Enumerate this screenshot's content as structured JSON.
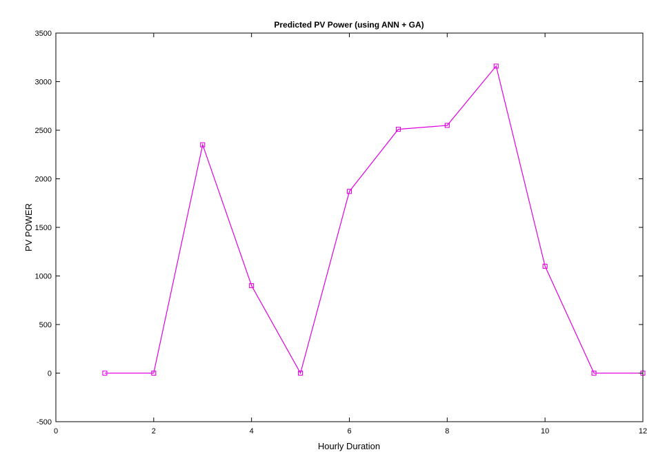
{
  "chart_data": {
    "type": "line",
    "title": "Predicted PV Power (using ANN + GA)",
    "xlabel": "Hourly Duration",
    "ylabel": "PV POWER",
    "xlim": [
      0,
      12
    ],
    "ylim": [
      -500,
      3500
    ],
    "x_ticks": [
      0,
      2,
      4,
      6,
      8,
      10,
      12
    ],
    "y_ticks": [
      -500,
      0,
      500,
      1000,
      1500,
      2000,
      2500,
      3000,
      3500
    ],
    "grid": false,
    "series": [
      {
        "color": "#e000e0",
        "marker": "square",
        "x": [
          1,
          2,
          3,
          4,
          5,
          6,
          7,
          8,
          9,
          10,
          11,
          12
        ],
        "y": [
          0,
          0,
          2350,
          900,
          0,
          1870,
          2510,
          2550,
          3160,
          1100,
          0,
          0
        ]
      }
    ]
  }
}
